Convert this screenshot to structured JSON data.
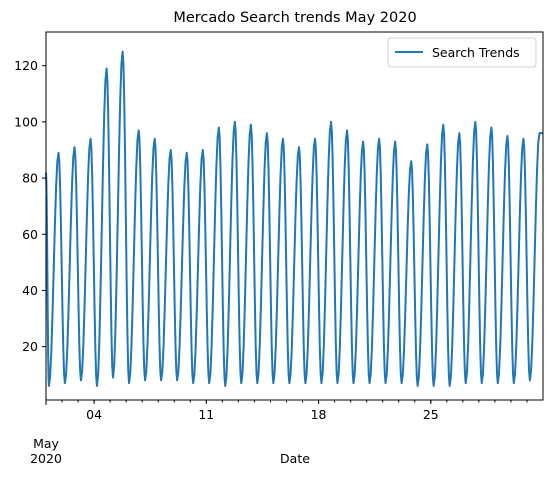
{
  "chart_data": {
    "type": "line",
    "title": "Mercado Search trends May 2020",
    "xlabel": "Date",
    "ylabel": "",
    "x_range": [
      "2020-05-01",
      "2020-05-31"
    ],
    "ylim": [
      1,
      132
    ],
    "x_major_ticks": [
      {
        "date": "2020-05-04",
        "label": "04"
      },
      {
        "date": "2020-05-11",
        "label": "11"
      },
      {
        "date": "2020-05-18",
        "label": "18"
      },
      {
        "date": "2020-05-25",
        "label": "25"
      }
    ],
    "x_secondary_label": [
      "May",
      "2020"
    ],
    "y_ticks": [
      20,
      40,
      60,
      80,
      100,
      120
    ],
    "grid": false,
    "legend_position": "top-right",
    "series": [
      {
        "name": "Search Trends",
        "color": "#1f77b4",
        "daily": [
          {
            "date": "2020-05-01",
            "min": 6,
            "max": 89
          },
          {
            "date": "2020-05-02",
            "min": 7,
            "max": 91
          },
          {
            "date": "2020-05-03",
            "min": 8,
            "max": 94
          },
          {
            "date": "2020-05-04",
            "min": 6,
            "max": 119
          },
          {
            "date": "2020-05-05",
            "min": 9,
            "max": 125
          },
          {
            "date": "2020-05-06",
            "min": 7,
            "max": 97
          },
          {
            "date": "2020-05-07",
            "min": 8,
            "max": 94
          },
          {
            "date": "2020-05-08",
            "min": 8,
            "max": 90
          },
          {
            "date": "2020-05-09",
            "min": 8,
            "max": 89
          },
          {
            "date": "2020-05-10",
            "min": 7,
            "max": 90
          },
          {
            "date": "2020-05-11",
            "min": 7,
            "max": 98
          },
          {
            "date": "2020-05-12",
            "min": 6,
            "max": 100
          },
          {
            "date": "2020-05-13",
            "min": 7,
            "max": 99
          },
          {
            "date": "2020-05-14",
            "min": 7,
            "max": 96
          },
          {
            "date": "2020-05-15",
            "min": 7,
            "max": 94
          },
          {
            "date": "2020-05-16",
            "min": 7,
            "max": 91
          },
          {
            "date": "2020-05-17",
            "min": 7,
            "max": 94
          },
          {
            "date": "2020-05-18",
            "min": 7,
            "max": 100
          },
          {
            "date": "2020-05-19",
            "min": 7,
            "max": 97
          },
          {
            "date": "2020-05-20",
            "min": 7,
            "max": 93
          },
          {
            "date": "2020-05-21",
            "min": 7,
            "max": 94
          },
          {
            "date": "2020-05-22",
            "min": 7,
            "max": 93
          },
          {
            "date": "2020-05-23",
            "min": 7,
            "max": 86
          },
          {
            "date": "2020-05-24",
            "min": 6,
            "max": 92
          },
          {
            "date": "2020-05-25",
            "min": 6,
            "max": 99
          },
          {
            "date": "2020-05-26",
            "min": 6,
            "max": 96
          },
          {
            "date": "2020-05-27",
            "min": 7,
            "max": 100
          },
          {
            "date": "2020-05-28",
            "min": 7,
            "max": 98
          },
          {
            "date": "2020-05-29",
            "min": 7,
            "max": 95
          },
          {
            "date": "2020-05-30",
            "min": 7,
            "max": 94
          },
          {
            "date": "2020-05-31",
            "min": 8,
            "max": 96
          }
        ]
      }
    ]
  }
}
